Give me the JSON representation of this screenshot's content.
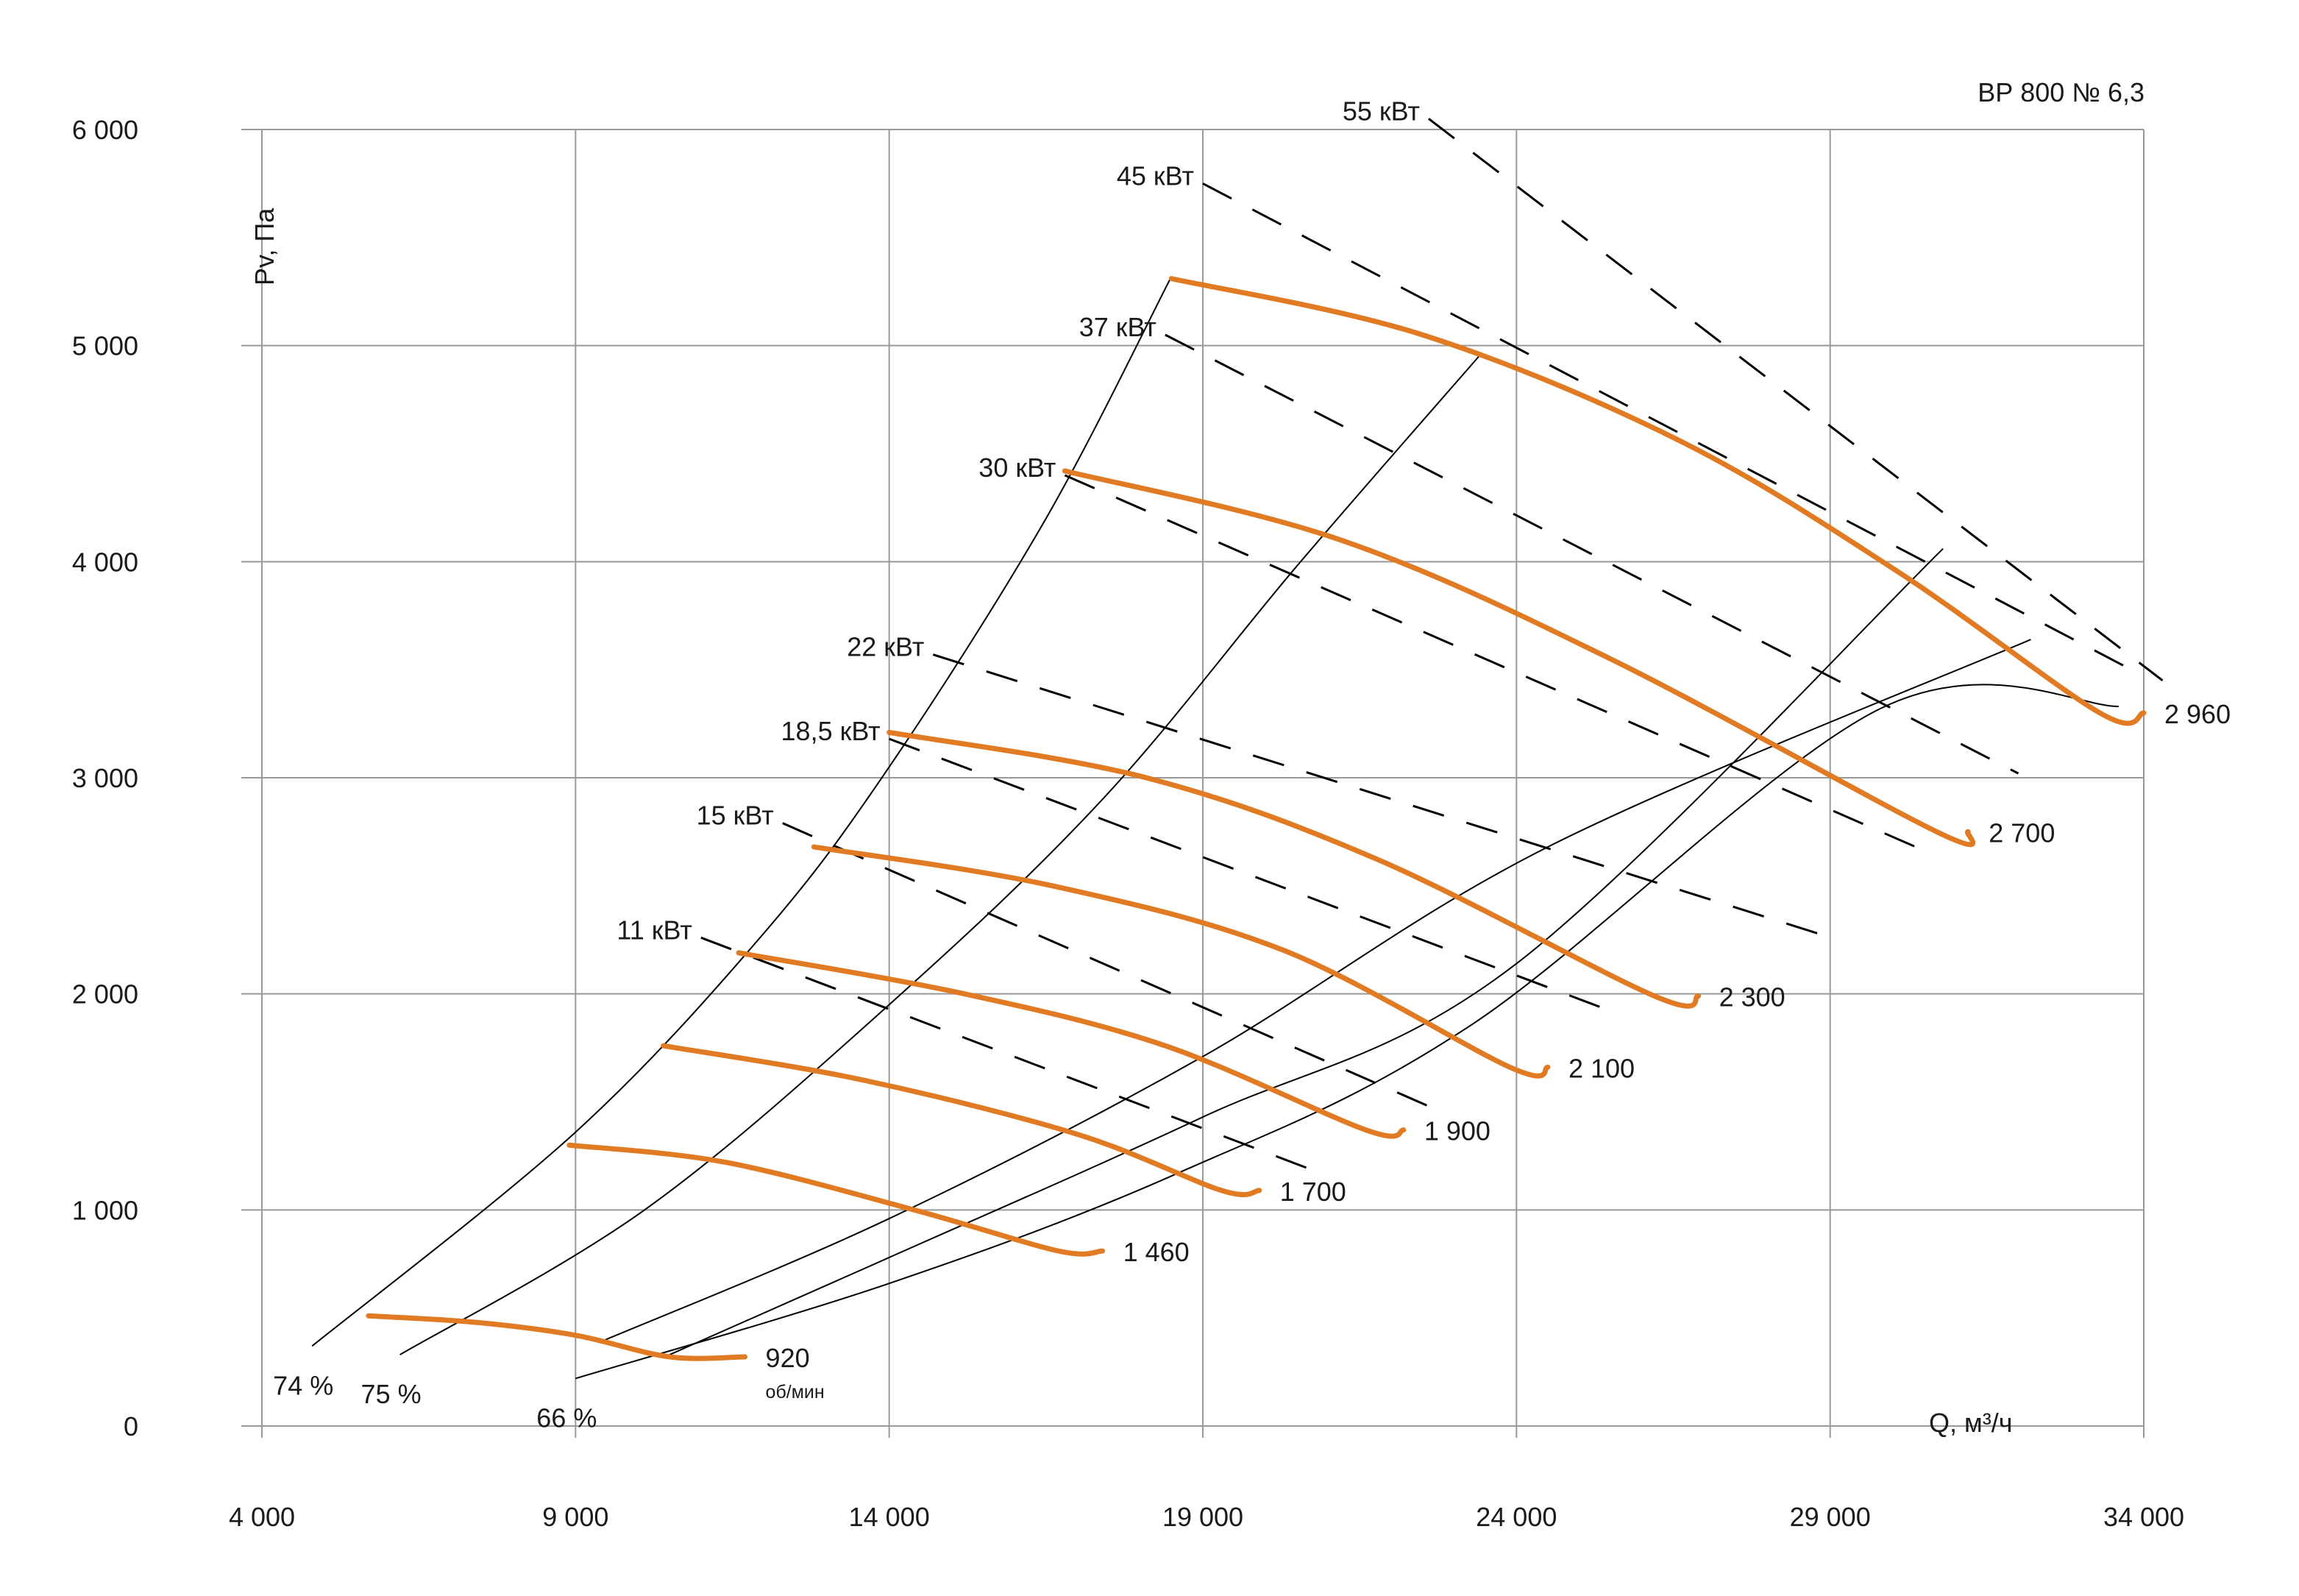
{
  "chart_data": {
    "type": "line",
    "title": "ВР 800 № 6,3",
    "xlabel": "Q, м³/ч",
    "ylabel": "Pv, Па",
    "xlim": [
      4000,
      34000
    ],
    "ylim": [
      0,
      6000
    ],
    "x_ticks": [
      4000,
      9000,
      14000,
      19000,
      24000,
      29000,
      34000
    ],
    "y_ticks": [
      0,
      1000,
      2000,
      3000,
      4000,
      5000,
      6000
    ],
    "x_tick_labels": [
      "4 000",
      "9 000",
      "14 000",
      "19 000",
      "24 000",
      "29 000",
      "34 000"
    ],
    "y_tick_labels": [
      "0",
      "1 000",
      "2 000",
      "3 000",
      "4 000",
      "5 000",
      "6 000"
    ],
    "grid": true,
    "colors": {
      "speed_curve": "#e07b24",
      "efficiency_line": "#000000",
      "power_line": "#000000",
      "grid": "#999999"
    },
    "speed_curves": [
      {
        "label": "920",
        "sublabel": "об/мин",
        "points": [
          [
            5700,
            510
          ],
          [
            7400,
            480
          ],
          [
            9000,
            420
          ],
          [
            10500,
            320
          ],
          [
            11700,
            320
          ]
        ]
      },
      {
        "label": "1 460",
        "points": [
          [
            8900,
            1300
          ],
          [
            11400,
            1220
          ],
          [
            14400,
            1000
          ],
          [
            16700,
            810
          ],
          [
            17400,
            810
          ]
        ]
      },
      {
        "label": "1 700",
        "points": [
          [
            10400,
            1760
          ],
          [
            13600,
            1600
          ],
          [
            17000,
            1350
          ],
          [
            19300,
            1090
          ],
          [
            19900,
            1090
          ]
        ]
      },
      {
        "label": "1 900",
        "points": [
          [
            11600,
            2190
          ],
          [
            15200,
            2000
          ],
          [
            18400,
            1760
          ],
          [
            21600,
            1370
          ],
          [
            22200,
            1370
          ]
        ]
      },
      {
        "label": "2 100",
        "points": [
          [
            12800,
            2680
          ],
          [
            16600,
            2500
          ],
          [
            20300,
            2200
          ],
          [
            23900,
            1660
          ],
          [
            24500,
            1660
          ]
        ]
      },
      {
        "label": "2 300",
        "points": [
          [
            14000,
            3210
          ],
          [
            18100,
            3000
          ],
          [
            21800,
            2620
          ],
          [
            26200,
            1990
          ],
          [
            26900,
            1990
          ]
        ]
      },
      {
        "label": "2 700",
        "points": [
          [
            16800,
            4420
          ],
          [
            21200,
            4100
          ],
          [
            25500,
            3550
          ],
          [
            30700,
            2750
          ],
          [
            31200,
            2750
          ]
        ]
      },
      {
        "label": "2 960",
        "points": [
          [
            18500,
            5310
          ],
          [
            22500,
            5050
          ],
          [
            26600,
            4560
          ],
          [
            30100,
            3950
          ],
          [
            33300,
            3300
          ],
          [
            34000,
            3300
          ]
        ]
      }
    ],
    "efficiency_lines": [
      {
        "label": "74 %",
        "points": [
          [
            4800,
            370
          ],
          [
            9000,
            1360
          ],
          [
            12000,
            2280
          ],
          [
            14000,
            3050
          ],
          [
            16500,
            4200
          ],
          [
            18500,
            5320
          ]
        ]
      },
      {
        "label": "75 %",
        "points": [
          [
            6200,
            330
          ],
          [
            10100,
            1000
          ],
          [
            14000,
            1950
          ],
          [
            17400,
            2900
          ],
          [
            20500,
            3980
          ],
          [
            23400,
            4950
          ]
        ]
      },
      {
        "label": "66 %",
        "points": [
          [
            9000,
            220
          ],
          [
            14000,
            660
          ],
          [
            18600,
            1170
          ],
          [
            23300,
            1860
          ],
          [
            29800,
            3320
          ],
          [
            33600,
            3330
          ]
        ]
      }
    ],
    "efficiency_line_4": {
      "points": [
        [
          10500,
          330
        ],
        [
          14000,
          780
        ],
        [
          19000,
          1430
        ],
        [
          24000,
          2140
        ],
        [
          30800,
          4060
        ]
      ]
    },
    "efficiency_line_5": {
      "points": [
        [
          9400,
          390
        ],
        [
          14000,
          960
        ],
        [
          19000,
          1710
        ],
        [
          24500,
          2680
        ],
        [
          32200,
          3640
        ]
      ]
    },
    "power_lines": [
      {
        "label": "11 кВт",
        "points": [
          [
            11000,
            2260
          ],
          [
            20700,
            1190
          ]
        ]
      },
      {
        "label": "15 кВт",
        "points": [
          [
            12300,
            2790
          ],
          [
            22600,
            1480
          ]
        ]
      },
      {
        "label": "18,5 кВт",
        "points": [
          [
            14000,
            3180
          ],
          [
            25600,
            1910
          ]
        ]
      },
      {
        "label": "22 кВт",
        "points": [
          [
            14700,
            3570
          ],
          [
            28800,
            2280
          ]
        ]
      },
      {
        "label": "30 кВт",
        "points": [
          [
            16800,
            4400
          ],
          [
            30600,
            2650
          ]
        ]
      },
      {
        "label": "37 кВт",
        "points": [
          [
            18400,
            5050
          ],
          [
            32000,
            3020
          ]
        ]
      },
      {
        "label": "45 кВт",
        "points": [
          [
            19000,
            5750
          ],
          [
            34000,
            3470
          ]
        ]
      },
      {
        "label": "55 кВт",
        "points": [
          [
            22600,
            6050
          ],
          [
            34300,
            3450
          ]
        ]
      }
    ]
  }
}
